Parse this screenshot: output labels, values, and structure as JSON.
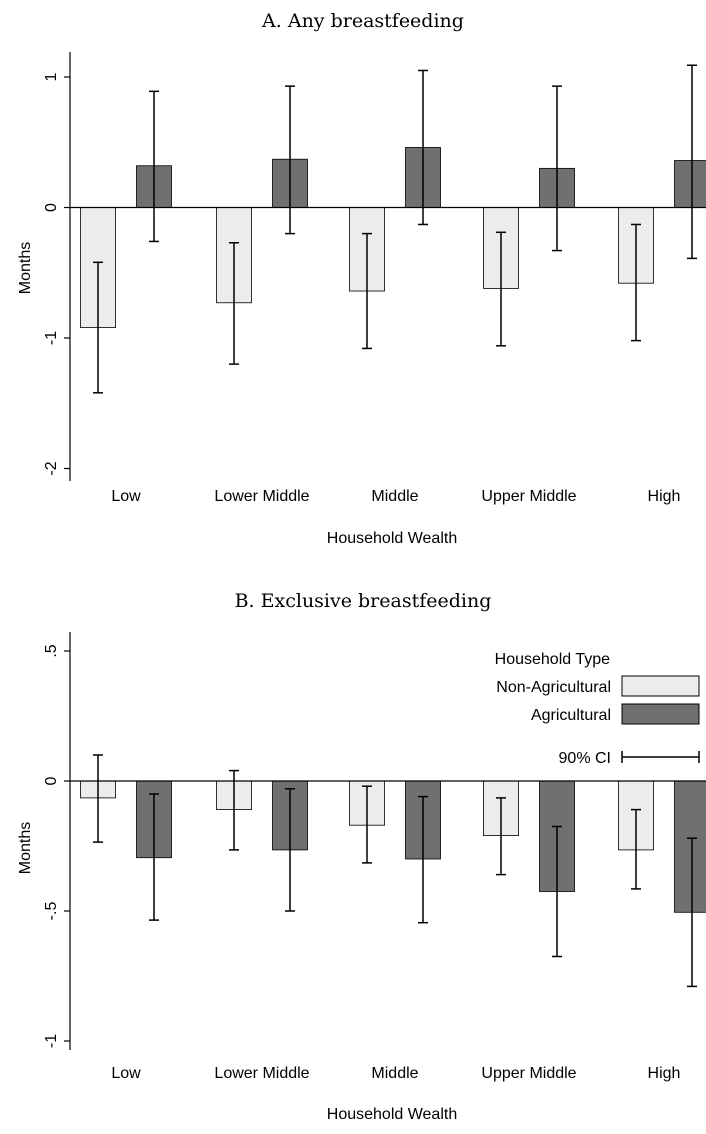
{
  "chart_data": [
    {
      "type": "bar",
      "title": "A. Any breastfeeding",
      "xlabel": "Household Wealth",
      "ylabel": "Months",
      "ylim": [
        -2,
        1.2
      ],
      "yticks": [
        "1",
        "0",
        "-1",
        "-2"
      ],
      "categories": [
        "Low",
        "Lower Middle",
        "Middle",
        "Upper Middle",
        "High"
      ],
      "series": [
        {
          "name": "Non-Agricultural",
          "color": "#ececec",
          "values": [
            -0.92,
            -0.73,
            -0.64,
            -0.62,
            -0.58
          ],
          "ci_low": [
            -1.42,
            -1.2,
            -1.08,
            -1.06,
            -1.02
          ],
          "ci_high": [
            -0.42,
            -0.27,
            -0.2,
            -0.19,
            -0.13
          ]
        },
        {
          "name": "Agricultural",
          "color": "#707070",
          "values": [
            0.32,
            0.37,
            0.46,
            0.3,
            0.36
          ],
          "ci_low": [
            -0.26,
            -0.2,
            -0.13,
            -0.33,
            -0.39
          ],
          "ci_high": [
            0.89,
            0.93,
            1.05,
            0.93,
            1.09
          ]
        }
      ]
    },
    {
      "type": "bar",
      "title": "B. Exclusive breastfeeding",
      "xlabel": "Household Wealth",
      "ylabel": "Months",
      "ylim": [
        -1.05,
        0.6
      ],
      "yticks": [
        ".5",
        "0",
        "-.5",
        "-1"
      ],
      "categories": [
        "Low",
        "Lower Middle",
        "Middle",
        "Upper Middle",
        "High"
      ],
      "series": [
        {
          "name": "Non-Agricultural",
          "color": "#ececec",
          "values": [
            -0.065,
            -0.11,
            -0.17,
            -0.21,
            -0.265
          ],
          "ci_low": [
            -0.235,
            -0.265,
            -0.315,
            -0.36,
            -0.415
          ],
          "ci_high": [
            0.1,
            0.04,
            -0.02,
            -0.065,
            -0.11
          ]
        },
        {
          "name": "Agricultural",
          "color": "#707070",
          "values": [
            -0.295,
            -0.265,
            -0.3,
            -0.425,
            -0.505
          ],
          "ci_low": [
            -0.535,
            -0.5,
            -0.545,
            -0.675,
            -0.79
          ],
          "ci_high": [
            -0.05,
            -0.03,
            -0.06,
            -0.175,
            -0.22
          ]
        }
      ]
    }
  ],
  "legend": {
    "title": "Household Type",
    "items": [
      "Non-Agricultural",
      "Agricultural"
    ],
    "ci_label": "90% CI"
  }
}
